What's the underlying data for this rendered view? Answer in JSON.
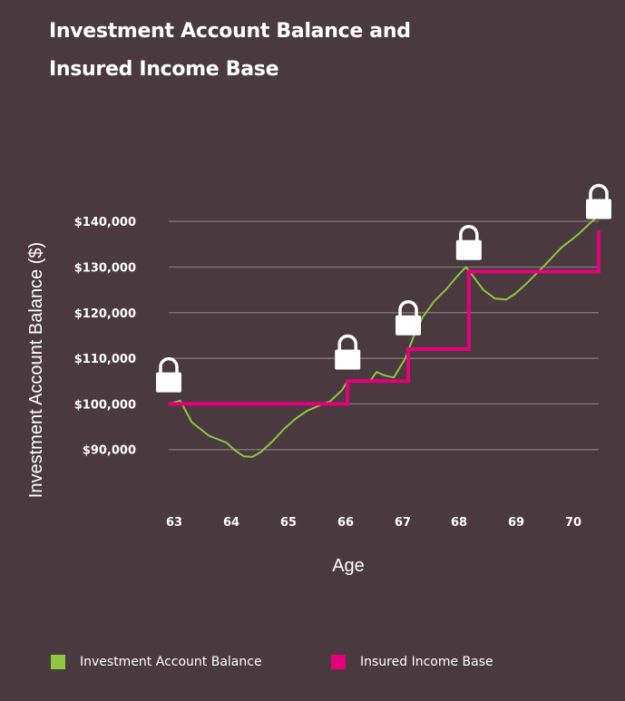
{
  "title_lines": [
    "Investment Account Balance and",
    "Insured Income Base"
  ],
  "colors": {
    "background": "#4a3a3f",
    "investment": "#8dc63f",
    "income_base": "#e4007c",
    "grid": "#7d7176",
    "lock": "#ffffff"
  },
  "chart_data": {
    "type": "line",
    "title": "Investment Account Balance and Insured Income Base",
    "xlabel": "Age",
    "ylabel": "Investment Account Balance ($)",
    "xlim": [
      63,
      70.45
    ],
    "ylim": [
      80000,
      144000
    ],
    "x_ticks": [
      63,
      64,
      65,
      66,
      67,
      68,
      69,
      70
    ],
    "x_tick_labels": [
      "63",
      "64",
      "65",
      "66",
      "67",
      "68",
      "69",
      "70"
    ],
    "y_ticks": [
      90000,
      100000,
      110000,
      120000,
      130000,
      140000
    ],
    "y_tick_labels": [
      "$90,000",
      "$100,000",
      "$110,000",
      "$120,000",
      "$130,000",
      "$140,000"
    ],
    "grid": true,
    "legend_position": "bottom",
    "series": [
      {
        "name": "Investment Account Balance",
        "style": "line",
        "color": "#8dc63f",
        "x": [
          63,
          63.2,
          63.4,
          63.7,
          64,
          64.15,
          64.3,
          64.45,
          64.6,
          64.8,
          65,
          65.2,
          65.4,
          65.6,
          65.8,
          66,
          66.1,
          66.3,
          66.5,
          66.6,
          66.75,
          66.9,
          67.1,
          67.25,
          67.4,
          67.6,
          67.8,
          68.0,
          68.15,
          68.25,
          68.45,
          68.65,
          68.85,
          69.0,
          69.2,
          69.5,
          69.8,
          70.1,
          70.45
        ],
        "values": [
          100000,
          100700,
          96000,
          93000,
          91500,
          89800,
          88500,
          88400,
          89500,
          91800,
          94500,
          96800,
          98500,
          99600,
          100600,
          103000,
          105000,
          105000,
          105200,
          107000,
          106200,
          105800,
          110000,
          115000,
          119000,
          122500,
          125000,
          128000,
          130000,
          128400,
          125000,
          123100,
          122900,
          124100,
          126400,
          130200,
          134200,
          137200,
          141400
        ]
      },
      {
        "name": "Insured Income Base",
        "style": "step",
        "color": "#e4007c",
        "x": [
          63,
          66.1,
          66.1,
          67.15,
          67.15,
          68.2,
          68.2,
          70.45,
          70.45
        ],
        "values": [
          100000,
          100000,
          105000,
          105000,
          112000,
          112000,
          129000,
          129000,
          138000
        ]
      }
    ],
    "lock_markers": [
      {
        "x": 63.0,
        "y": 106500
      },
      {
        "x": 66.1,
        "y": 111500
      },
      {
        "x": 67.15,
        "y": 119000
      },
      {
        "x": 68.2,
        "y": 135500
      },
      {
        "x": 70.45,
        "y": 144500
      }
    ]
  }
}
